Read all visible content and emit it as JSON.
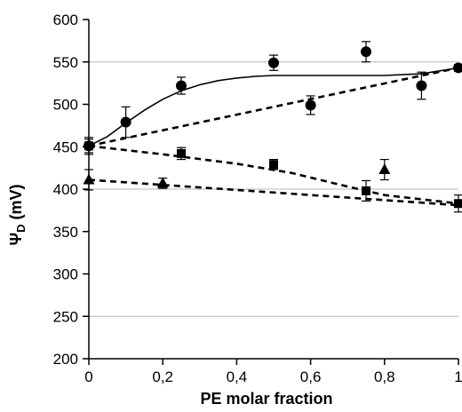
{
  "chart_data": {
    "type": "scatter",
    "xlabel": "PE molar fraction",
    "ylabel_main": "Ψ",
    "ylabel_sub": "D",
    "ylabel_unit": " (mV)",
    "xlim": [
      0,
      1
    ],
    "ylim": [
      200,
      600
    ],
    "x_ticks": [
      0,
      0.2,
      0.4,
      0.6,
      0.8,
      1
    ],
    "x_tick_labels": [
      "0",
      "0,2",
      "0,4",
      "0,6",
      "0,8",
      "1"
    ],
    "y_ticks": [
      200,
      250,
      300,
      350,
      400,
      450,
      500,
      550,
      600
    ],
    "y_tick_labels": [
      "200",
      "250",
      "300",
      "350",
      "400",
      "450",
      "500",
      "550",
      "600"
    ],
    "gridlines_y": [
      250,
      400,
      550
    ],
    "series": [
      {
        "marker": "circle",
        "points": [
          {
            "x": 0,
            "y": 451,
            "err": 10
          },
          {
            "x": 0.1,
            "y": 479,
            "err": 18
          },
          {
            "x": 0.25,
            "y": 522,
            "err": 10
          },
          {
            "x": 0.5,
            "y": 549,
            "err": 9
          },
          {
            "x": 0.6,
            "y": 499,
            "err": 11
          },
          {
            "x": 0.75,
            "y": 562,
            "err": 12
          },
          {
            "x": 0.9,
            "y": 522,
            "err": 16
          },
          {
            "x": 1,
            "y": 543,
            "err": 4
          }
        ],
        "fit_solid": [
          [
            0,
            451
          ],
          [
            0.05,
            462
          ],
          [
            0.1,
            478
          ],
          [
            0.15,
            493
          ],
          [
            0.2,
            506
          ],
          [
            0.25,
            516
          ],
          [
            0.3,
            523
          ],
          [
            0.35,
            528
          ],
          [
            0.4,
            531
          ],
          [
            0.45,
            533
          ],
          [
            0.5,
            534
          ],
          [
            0.6,
            534
          ],
          [
            0.7,
            534
          ],
          [
            0.8,
            534
          ],
          [
            0.9,
            536
          ],
          [
            1,
            543
          ]
        ],
        "fit_dashed": [
          [
            0,
            451
          ],
          [
            1,
            543
          ]
        ]
      },
      {
        "marker": "square",
        "points": [
          {
            "x": 0,
            "y": 451,
            "err": 8
          },
          {
            "x": 0.25,
            "y": 442,
            "err": 7
          },
          {
            "x": 0.5,
            "y": 429,
            "err": 6
          },
          {
            "x": 0.75,
            "y": 398,
            "err": 12
          },
          {
            "x": 1,
            "y": 383,
            "err": 10
          }
        ],
        "fit_dashed": [
          [
            0,
            451
          ],
          [
            0.2,
            441
          ],
          [
            0.4,
            430
          ],
          [
            0.55,
            419
          ],
          [
            0.7,
            403
          ],
          [
            0.8,
            393
          ],
          [
            1,
            383
          ]
        ]
      },
      {
        "marker": "triangle",
        "points": [
          {
            "x": 0,
            "y": 411,
            "err": 12
          },
          {
            "x": 0.2,
            "y": 407,
            "err": 6
          },
          {
            "x": 0.8,
            "y": 423,
            "err": 12
          }
        ],
        "fit_dashed": [
          [
            0,
            411
          ],
          [
            1,
            381
          ]
        ]
      }
    ]
  }
}
